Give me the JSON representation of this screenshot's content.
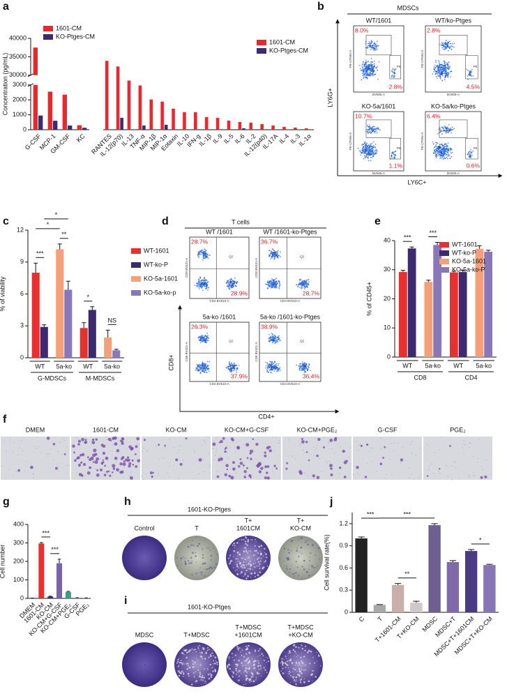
{
  "panel_letters": [
    "a",
    "b",
    "c",
    "d",
    "e",
    "f",
    "g",
    "h",
    "i",
    "j"
  ],
  "chart_data": [
    {
      "type": "bar",
      "y_label": "Concentration (pg/mL)",
      "categories": [
        "G-CSF",
        "MCP-1",
        "GM-CSF",
        "KC"
      ],
      "series": [
        {
          "name": "1601-CM",
          "color": "#e8282c",
          "values": [
            37500,
            2550,
            2350,
            300
          ]
        },
        {
          "name": "KO-Ptges-CM",
          "color": "#3c2a73",
          "values": [
            950,
            600,
            280,
            130
          ]
        }
      ],
      "ylim": [
        0,
        40000
      ],
      "ybreak": [
        3000,
        30000
      ],
      "yticks": [
        0,
        1000,
        2000,
        3000,
        30000,
        35000,
        40000
      ],
      "legend": "top-left"
    },
    {
      "type": "bar",
      "categories": [
        "RANTES",
        "IL-12(p70)",
        "IL-13",
        "TNF-α",
        "MIP-1β",
        "MIP-1α",
        "Eotaxin",
        "IL-10",
        "IFN-g",
        "IL-1β",
        "IL-9",
        "IL-5",
        "IL-6",
        "IL-2",
        "IL-12(p40)",
        "IL-17A",
        "IL-4",
        "IL-3",
        "IL-1α"
      ],
      "series": [
        {
          "name": "1601-CM",
          "color": "#e8282c",
          "values": [
            49,
            45,
            35,
            31.5,
            21.5,
            20,
            15,
            12.5,
            12.5,
            9,
            8.5,
            6.5,
            5.5,
            5,
            4,
            3,
            2,
            1.5,
            1
          ]
        },
        {
          "name": "KO-Ptges-CM",
          "color": "#3c2a73",
          "values": [
            0.3,
            8.5,
            0.3,
            3,
            0.3,
            3.5,
            0.3,
            0.3,
            0.3,
            0.3,
            0.3,
            0.3,
            1,
            0.3,
            0.3,
            0.2,
            0.2,
            0.2,
            0.2
          ]
        }
      ],
      "ylim": [
        0,
        65
      ],
      "legend": "top-right"
    },
    {
      "type": "bar",
      "y_label": "% of viability",
      "categories": [
        "WT",
        "5a-ko",
        "WT",
        "5a-ko"
      ],
      "groups": [
        "G-MDSCs",
        "M-MDSCs"
      ],
      "series": [
        {
          "name": "WT-1601",
          "color": "#e8312f",
          "values": [
            8.0,
            null,
            2.8,
            null
          ],
          "errors": [
            0.9,
            null,
            0.5,
            null
          ]
        },
        {
          "name": "WT-ko-P",
          "color": "#3b2a70",
          "values": [
            2.9,
            null,
            4.5,
            null
          ],
          "errors": [
            0.2,
            null,
            0.3,
            null
          ]
        },
        {
          "name": "KO-5a-1601",
          "color": "#f6a07a",
          "values": [
            null,
            10.2,
            null,
            1.9
          ],
          "errors": [
            null,
            0.5,
            null,
            0.7
          ]
        },
        {
          "name": "KO-5a-ko-p",
          "color": "#8a77b8",
          "values": [
            null,
            6.4,
            null,
            0.7
          ],
          "errors": [
            null,
            0.8,
            null,
            0.1
          ]
        }
      ],
      "ylim": [
        0,
        12
      ],
      "yticks": [
        0,
        3,
        6,
        9,
        12
      ],
      "annotations": [
        "***",
        "*",
        "*",
        "**",
        "*",
        "NS"
      ],
      "legend": "right"
    },
    {
      "type": "bar",
      "y_label": "% of CD45+",
      "categories": [
        "WT",
        "5a-ko",
        "WT",
        "5a-ko"
      ],
      "groups": [
        "CD8",
        "CD4"
      ],
      "series": [
        {
          "name": "WT-1601",
          "color": "#e8312f",
          "values": [
            29.2,
            null,
            29.1,
            null
          ],
          "errors": [
            0.6,
            null,
            0.4,
            null
          ]
        },
        {
          "name": "WT-ko-P",
          "color": "#3b2a70",
          "values": [
            37.3,
            null,
            29.2,
            null
          ],
          "errors": [
            0.5,
            null,
            0.6,
            null
          ]
        },
        {
          "name": "KO-5a-1601",
          "color": "#f6a07a",
          "values": [
            null,
            25.8,
            null,
            37.2
          ],
          "errors": [
            null,
            0.6,
            null,
            1.0
          ]
        },
        {
          "name": "KO-5a-ko-P",
          "color": "#8a77b8",
          "values": [
            null,
            38.5,
            null,
            36.2
          ],
          "errors": [
            null,
            0.9,
            null,
            0.5
          ]
        }
      ],
      "ylim": [
        0,
        40
      ],
      "yticks": [
        0,
        10,
        20,
        30,
        40
      ],
      "annotations": [
        "***",
        "***"
      ],
      "legend": "top-right"
    },
    {
      "type": "bar",
      "y_label": "Cell number",
      "categories": [
        "DMEM",
        "1601-CM",
        "KO-CM",
        "KO-CM+G-CSF",
        "KO-CM+PGE₂",
        "G-CSF",
        "PGE₂"
      ],
      "values": [
        1,
        297,
        10,
        190,
        35,
        3,
        2
      ],
      "errors": [
        0.5,
        5,
        2,
        22,
        3,
        1,
        1
      ],
      "colors": [
        "#222222",
        "#e8312f",
        "#3b2a70",
        "#7a62a8",
        "#3a9a94",
        "#9a9a9a",
        "#9a9a9a"
      ],
      "ylim": [
        0,
        400
      ],
      "yticks": [
        0,
        100,
        200,
        300,
        400
      ],
      "annotations": [
        "***",
        "***"
      ]
    },
    {
      "type": "bar",
      "y_label": "Cell survival rate(%)",
      "categories": [
        "C",
        "T",
        "T+1601-CM",
        "T+KO-CM",
        "MDSC",
        "MDSC+T",
        "MDSC+T+1601CM",
        "MDSC+T+KO-CM"
      ],
      "values": [
        1.0,
        0.1,
        0.37,
        0.13,
        1.18,
        0.68,
        0.83,
        0.64
      ],
      "errors": [
        0.02,
        0.005,
        0.02,
        0.02,
        0.02,
        0.02,
        0.02,
        0.01
      ],
      "colors": [
        "#222222",
        "#a8a8a8",
        "#c9afac",
        "#cfc8c8",
        "#6e5f91",
        "#7f69a6",
        "#4b3a84",
        "#8775b6"
      ],
      "ylim": [
        0,
        1.35
      ],
      "yticks": [
        0,
        0.3,
        0.6,
        0.9,
        1.2
      ],
      "annotations": [
        "***",
        "***",
        "**",
        "*"
      ]
    }
  ],
  "panel_b": {
    "title": "MDSCs",
    "y_label": "LY6G+",
    "x_label": "LY6C+",
    "plot_y_axis": "PE-CF594-A",
    "plot_x_axis": "BV605-A",
    "gate_label": "P6",
    "plots": [
      {
        "label": "WT/1601",
        "upper": "8.0%",
        "lower": "2.8%"
      },
      {
        "label": "WT/ko-Ptges",
        "upper": "2.8%",
        "lower": "4.5%"
      },
      {
        "label": "KO-5a/1601",
        "upper": "10.7%",
        "lower": "1.1%"
      },
      {
        "label": "KO-5a/ko-Ptges",
        "upper": "6.4%",
        "lower": "0.6%"
      }
    ]
  },
  "panel_d": {
    "title": "T cells",
    "y_label": "CD8+",
    "x_label": "CD4+",
    "plot_y_axis": "CD8 BV421-A",
    "plot_x_axis": "CD4 BV510-A",
    "gate_label": "Q2",
    "plots": [
      {
        "label": "WT /1601",
        "upper": "28.7%",
        "lower": "28.9%"
      },
      {
        "label": "WT /1601-ko-Ptges",
        "upper": "36.7%",
        "lower": "28.7%"
      },
      {
        "label": "5a-ko /1601",
        "upper": "26.3%",
        "lower": "37.9%"
      },
      {
        "label": "5a-ko /1601-ko-Ptges",
        "upper": "38.9%",
        "lower": "36.4%"
      }
    ]
  },
  "panel_f": {
    "labels": [
      "DMEM",
      "1601-CM",
      "KO-CM",
      "KO-CM+G-CSF",
      "KO-CM+PGE₂",
      "G-CSF",
      "PGE₂"
    ]
  },
  "panel_h": {
    "title": "1601-KO-Ptges",
    "labels": [
      [
        "Control"
      ],
      [
        "T"
      ],
      [
        "T+",
        "1601CM"
      ],
      [
        "T+",
        "KO-CM"
      ]
    ]
  },
  "panel_i": {
    "title": "1601-KO-Ptges",
    "labels": [
      [
        "MDSC"
      ],
      [
        "T+MDSC"
      ],
      [
        "T+MDSC",
        "+1601CM"
      ],
      [
        "T+MDSC",
        "+KO-CM"
      ]
    ]
  }
}
